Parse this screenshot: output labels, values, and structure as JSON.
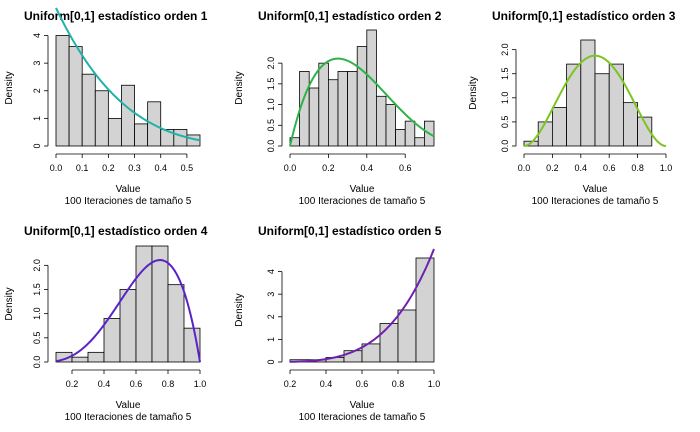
{
  "figure": {
    "background": "#ffffff",
    "bar_fill": "#d3d3d3",
    "bar_stroke": "#000000"
  },
  "chart_data": [
    {
      "type": "histogram",
      "title": "Uniform[0,1]    estadístico orden 1",
      "xlabel": "Value",
      "subtitle": "100 Iteraciones de tamaño 5",
      "ylabel": "Density",
      "xlim": [
        0,
        0.55
      ],
      "ylim": [
        0,
        4.2
      ],
      "xticks": [
        0,
        0.1,
        0.2,
        0.3,
        0.4,
        0.5
      ],
      "xtick_labels": [
        "0.0",
        "0.1",
        "0.2",
        "0.3",
        "0.4",
        "0.5"
      ],
      "yticks": [
        0,
        1,
        2,
        3,
        4
      ],
      "ytick_labels": [
        "0",
        "1",
        "2",
        "3",
        "4"
      ],
      "bin_edges": [
        0,
        0.05,
        0.1,
        0.15,
        0.2,
        0.25,
        0.3,
        0.35,
        0.4,
        0.45,
        0.5,
        0.55
      ],
      "densities": [
        4.0,
        3.6,
        2.6,
        2.0,
        1.0,
        2.2,
        0.8,
        1.6,
        0.6,
        0.6,
        0.4
      ],
      "curve": {
        "color": "#20b2aa",
        "n": 5,
        "k": 1
      }
    },
    {
      "type": "histogram",
      "title": "Uniform[0,1]    estadístico orden 2",
      "xlabel": "Value",
      "subtitle": "100 Iteraciones de tamaño 5",
      "ylabel": "Density",
      "xlim": [
        0,
        0.75
      ],
      "ylim": [
        0,
        2.8
      ],
      "xticks": [
        0,
        0.2,
        0.4,
        0.6
      ],
      "xtick_labels": [
        "0.0",
        "0.2",
        "0.4",
        "0.6"
      ],
      "yticks": [
        0,
        0.5,
        1,
        1.5,
        2
      ],
      "ytick_labels": [
        "0.0",
        "0.5",
        "1.0",
        "1.5",
        "2.0"
      ],
      "bin_edges": [
        0,
        0.05,
        0.1,
        0.15,
        0.2,
        0.25,
        0.3,
        0.35,
        0.4,
        0.45,
        0.5,
        0.55,
        0.6,
        0.65,
        0.7,
        0.75
      ],
      "densities": [
        0.2,
        1.8,
        1.4,
        2.0,
        1.6,
        1.8,
        1.8,
        2.4,
        2.8,
        1.2,
        1.0,
        0.4,
        0.6,
        0.2,
        0.6
      ],
      "curve": {
        "color": "#2db34a",
        "n": 5,
        "k": 2
      }
    },
    {
      "type": "histogram",
      "title": "Uniform[0,1]    estadístico orden 3",
      "xlabel": "Value",
      "subtitle": "100 Iteraciones de tamaño 5",
      "ylabel": "Density",
      "xlim": [
        0,
        1
      ],
      "ylim": [
        0,
        2.2
      ],
      "xticks": [
        0,
        0.2,
        0.4,
        0.6,
        0.8,
        1.0
      ],
      "xtick_labels": [
        "0.0",
        "0.2",
        "0.4",
        "0.6",
        "0.8",
        "1.0"
      ],
      "yticks": [
        0,
        0.5,
        1,
        1.5,
        2
      ],
      "ytick_labels": [
        "0.0",
        "0.5",
        "1.0",
        "1.5",
        "2.0"
      ],
      "bin_edges": [
        0,
        0.1,
        0.2,
        0.3,
        0.4,
        0.5,
        0.6,
        0.7,
        0.8,
        0.9
      ],
      "densities": [
        0.1,
        0.5,
        0.8,
        1.7,
        2.2,
        1.5,
        1.7,
        0.9,
        0.6
      ],
      "curve": {
        "color": "#7cc520",
        "n": 5,
        "k": 3
      }
    },
    {
      "type": "histogram",
      "title": "Uniform[0,1]    estadístico orden 4",
      "xlabel": "Value",
      "subtitle": "100 Iteraciones de tamaño 5",
      "ylabel": "Density",
      "xlim": [
        0.1,
        1.0
      ],
      "ylim": [
        0,
        2.4
      ],
      "xticks": [
        0.2,
        0.4,
        0.6,
        0.8,
        1.0
      ],
      "xtick_labels": [
        "0.2",
        "0.4",
        "0.6",
        "0.8",
        "1.0"
      ],
      "yticks": [
        0,
        0.5,
        1,
        1.5,
        2
      ],
      "ytick_labels": [
        "0.0",
        "0.5",
        "1.0",
        "1.5",
        "2.0"
      ],
      "bin_edges": [
        0.1,
        0.2,
        0.3,
        0.4,
        0.5,
        0.6,
        0.7,
        0.8,
        0.9,
        1.0
      ],
      "densities": [
        0.2,
        0.1,
        0.2,
        0.9,
        1.5,
        2.4,
        2.4,
        1.6,
        0.7
      ],
      "curve": {
        "color": "#5a22c8",
        "n": 5,
        "k": 4
      }
    },
    {
      "type": "histogram",
      "title": "Uniform[0,1]    estadístico orden 5",
      "xlabel": "Value",
      "subtitle": "100 Iteraciones de tamaño 5",
      "ylabel": "Density",
      "xlim": [
        0.2,
        1.0
      ],
      "ylim": [
        0,
        4.6
      ],
      "xticks": [
        0.2,
        0.4,
        0.6,
        0.8,
        1.0
      ],
      "xtick_labels": [
        "0.2",
        "0.4",
        "0.6",
        "0.8",
        "1.0"
      ],
      "yticks": [
        0,
        1,
        2,
        3,
        4
      ],
      "ytick_labels": [
        "0",
        "1",
        "2",
        "3",
        "4"
      ],
      "bin_edges": [
        0.2,
        0.3,
        0.4,
        0.5,
        0.6,
        0.7,
        0.8,
        0.9,
        1.0
      ],
      "densities": [
        0.1,
        0.1,
        0.2,
        0.5,
        0.8,
        1.7,
        2.3,
        4.6
      ],
      "curve": {
        "color": "#7020b0",
        "n": 5,
        "k": 5
      }
    }
  ]
}
